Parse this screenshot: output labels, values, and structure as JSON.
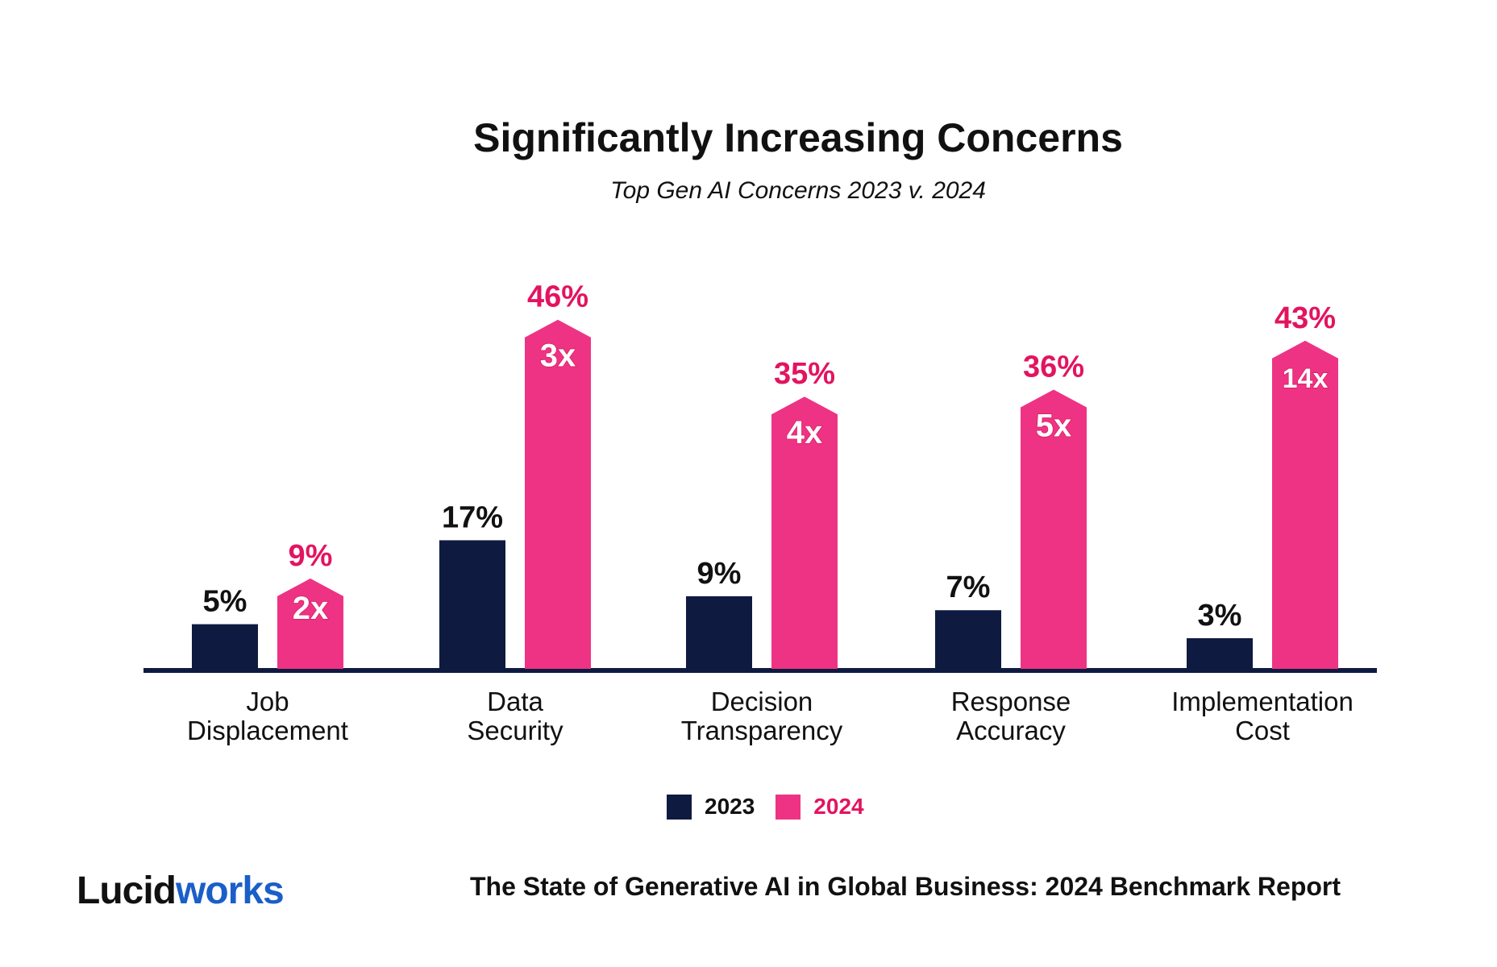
{
  "colors": {
    "c2023": "#0f1a40",
    "c2024": "#ee3384",
    "label2024": "#e3145f",
    "logo_blue": "#1a5fc8"
  },
  "chart_data": {
    "type": "bar",
    "title": "Significantly Increasing Concerns",
    "subtitle": "Top Gen AI Concerns 2023 v. 2024",
    "categories": [
      [
        "Job",
        "Displacement"
      ],
      [
        "Data",
        "Security"
      ],
      [
        "Decision",
        "Transparency"
      ],
      [
        "Response",
        "Accuracy"
      ],
      [
        "Implementation",
        "Cost"
      ]
    ],
    "series": [
      {
        "name": "2023",
        "values": [
          5,
          17,
          9,
          7,
          3
        ]
      },
      {
        "name": "2024",
        "values": [
          9,
          46,
          35,
          36,
          43
        ]
      }
    ],
    "multipliers": [
      "2x",
      "3x",
      "4x",
      "5x",
      "14x"
    ],
    "value_suffix": "%",
    "legend": "bottom-center",
    "grid": false
  },
  "legend": {
    "items": [
      "2023",
      "2024"
    ]
  },
  "footer": {
    "logo_part1": "Lucid",
    "logo_part2": "works",
    "report": "The State of Generative AI in Global Business: 2024 Benchmark Report"
  }
}
